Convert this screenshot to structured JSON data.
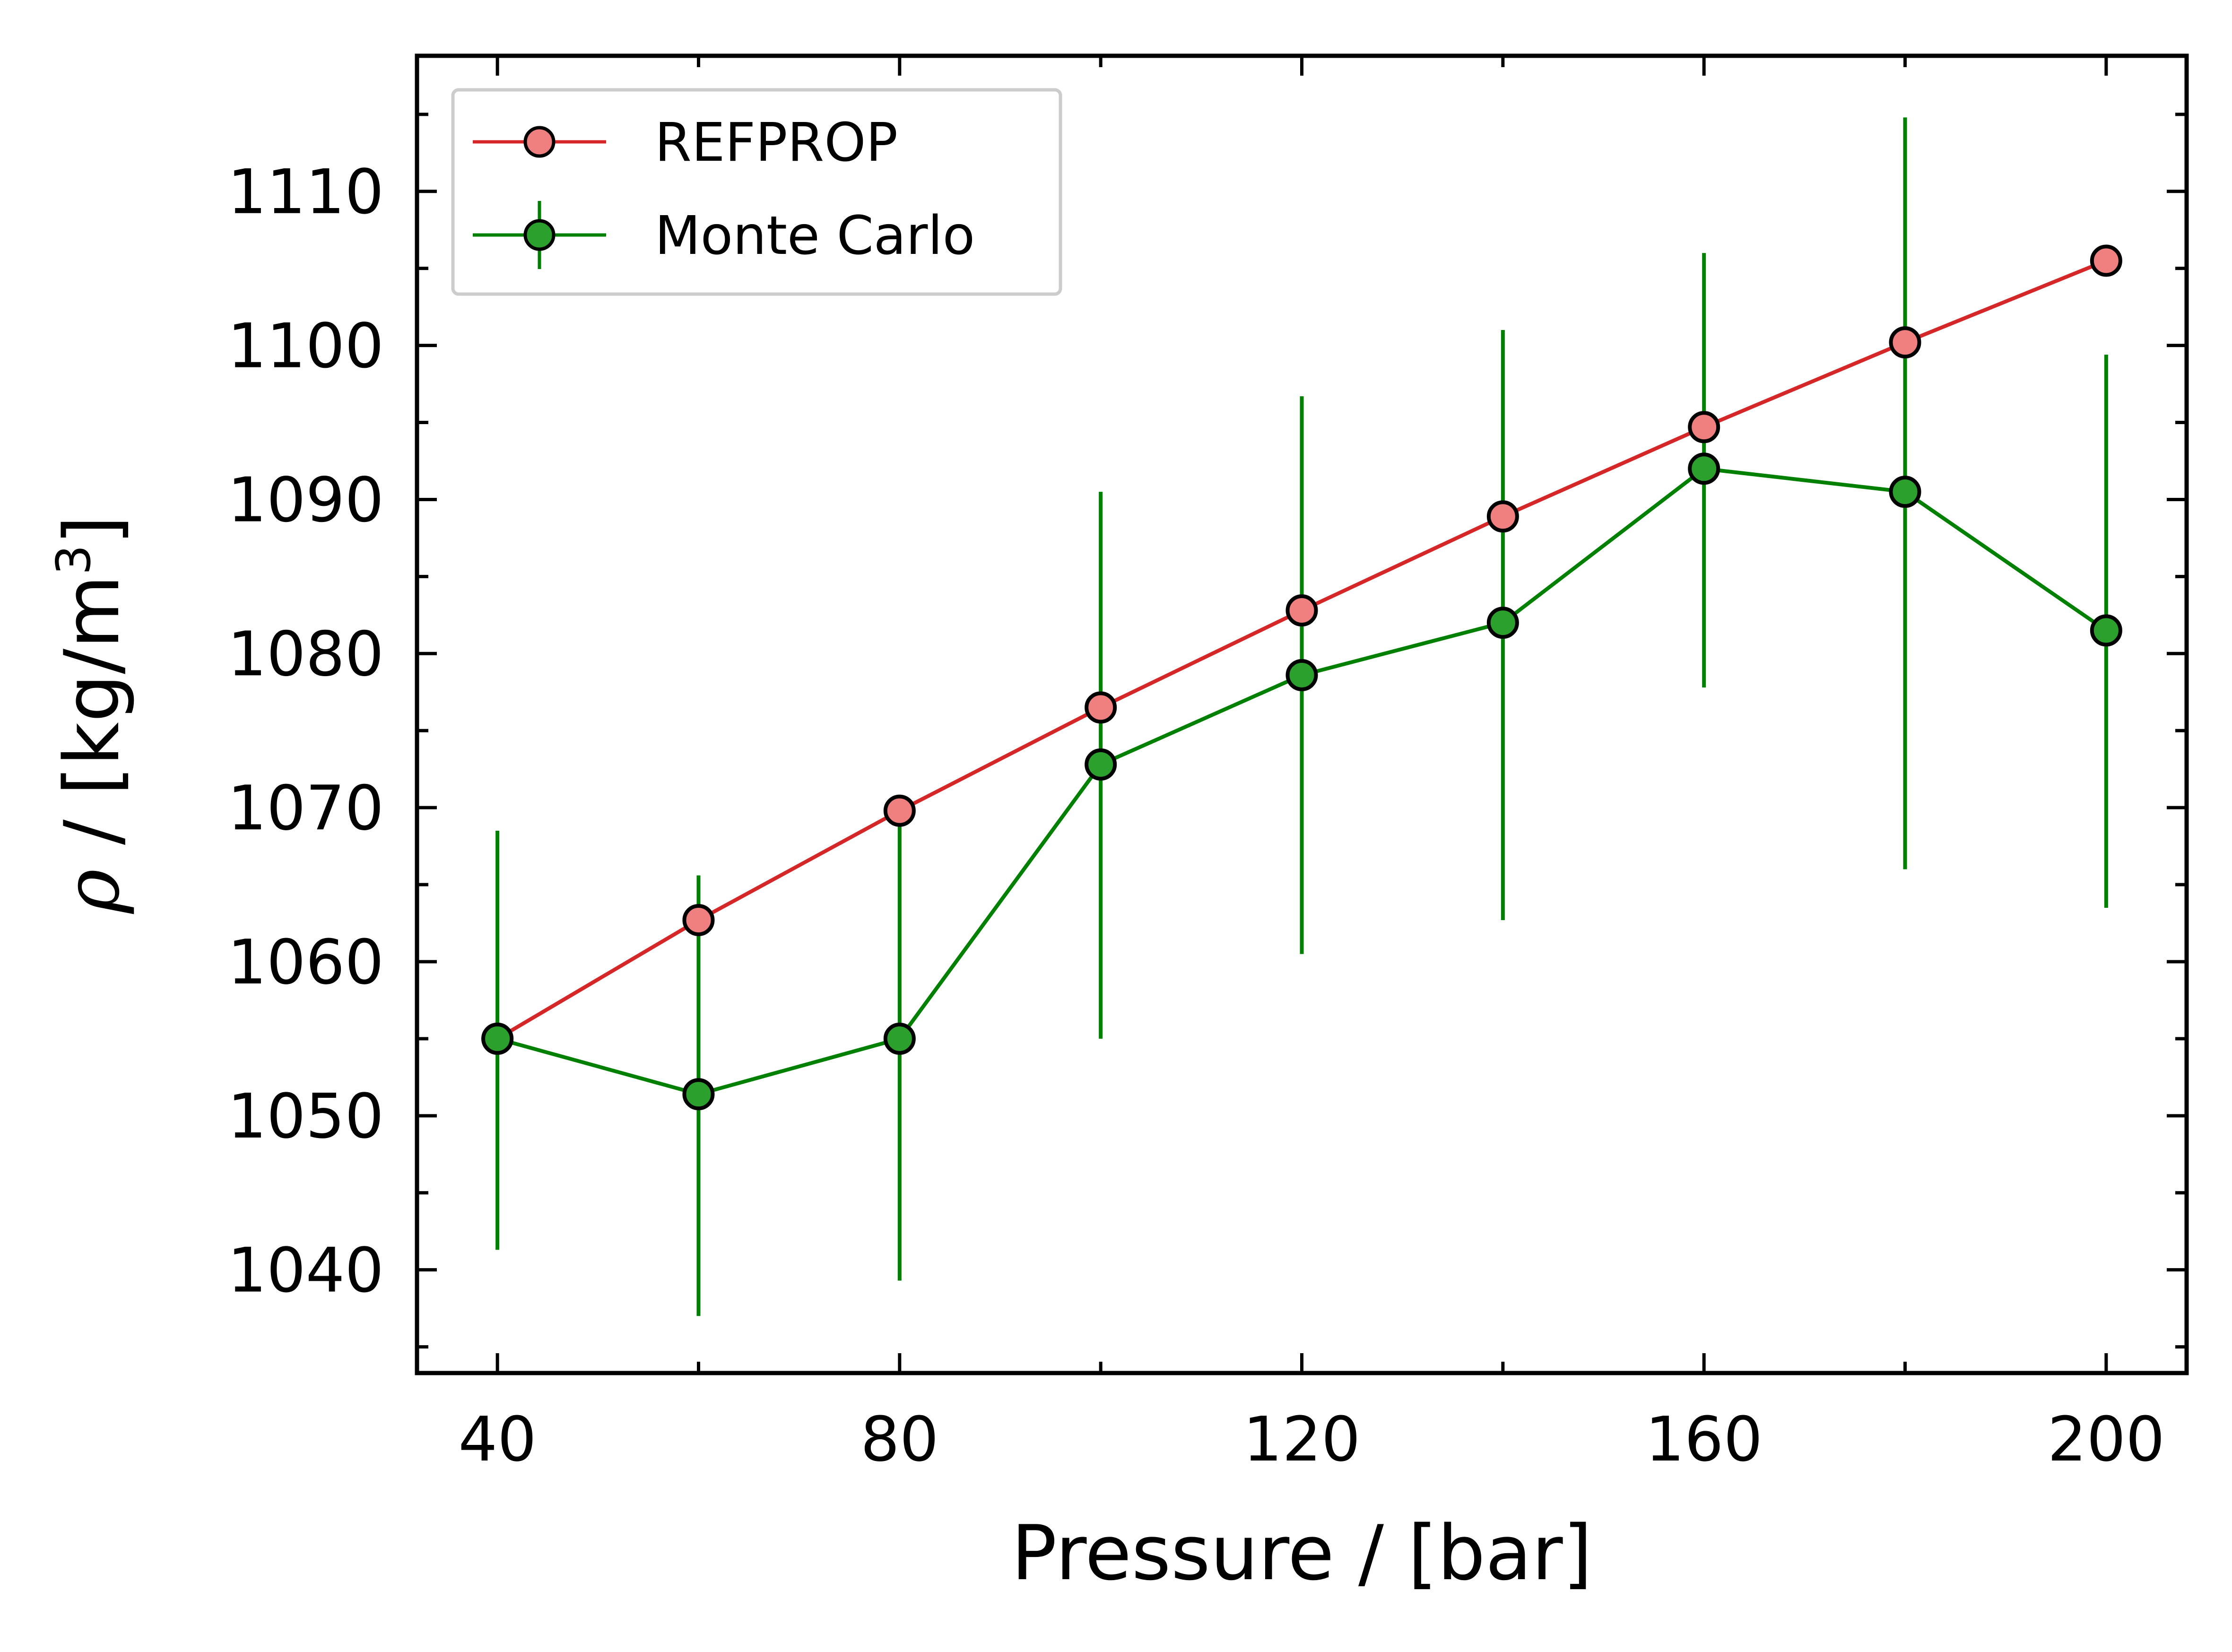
{
  "chart_data": {
    "type": "line",
    "xlabel": "Pressure / [bar]",
    "ylabel": {
      "symbol": "ρ",
      "text": " / [kg/m",
      "superscript": "3",
      "suffix": "]"
    },
    "xlim": [
      32,
      208
    ],
    "ylim": [
      1033.3,
      1118.8
    ],
    "xticks": [
      40,
      80,
      120,
      160,
      200
    ],
    "xticks_minor": [
      60,
      100,
      140,
      180
    ],
    "yticks": [
      1040,
      1050,
      1060,
      1070,
      1080,
      1090,
      1100,
      1110
    ],
    "yticks_minor": [
      1035,
      1045,
      1055,
      1065,
      1075,
      1085,
      1095,
      1105,
      1115
    ],
    "tick_direction": "in",
    "ticks_on_all_sides": true,
    "grid": false,
    "legend_position": "upper-left",
    "series": [
      {
        "name": "REFPROP",
        "color": "#d62728",
        "marker_face": "#f08080",
        "marker_edge": "#000000",
        "x": [
          40,
          60,
          80,
          100,
          120,
          140,
          160,
          180,
          200
        ],
        "y": [
          1055.0,
          1062.7,
          1069.8,
          1076.5,
          1082.8,
          1088.9,
          1094.7,
          1100.2,
          1105.5
        ]
      },
      {
        "name": "Monte Carlo",
        "color": "#008000",
        "marker_face": "#2ca02c",
        "marker_edge": "#000000",
        "x": [
          40,
          60,
          80,
          100,
          120,
          140,
          160,
          180,
          200
        ],
        "y": [
          1055.0,
          1051.4,
          1055.0,
          1072.8,
          1078.6,
          1082.0,
          1092.0,
          1090.5,
          1081.5
        ],
        "yerr_low": [
          1041.3,
          1037.0,
          1039.3,
          1055.0,
          1060.5,
          1062.7,
          1077.8,
          1066.0,
          1063.5
        ],
        "yerr_high": [
          1068.5,
          1065.6,
          1069.0,
          1090.5,
          1096.7,
          1101.0,
          1106.0,
          1114.8,
          1099.4
        ]
      }
    ]
  }
}
